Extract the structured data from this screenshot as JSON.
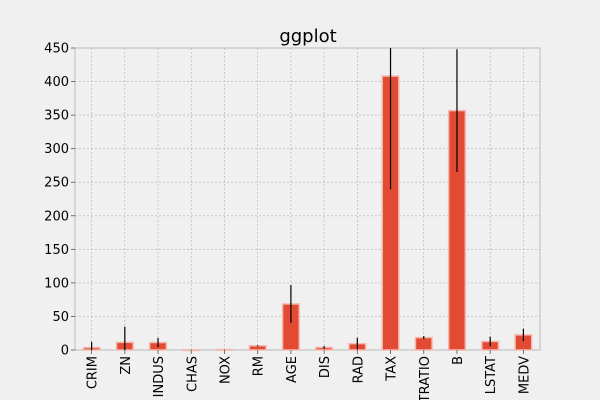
{
  "chart_data": {
    "type": "bar",
    "title": "ggplot",
    "categories": [
      "CRIM",
      "ZN",
      "INDUS",
      "CHAS",
      "NOX",
      "RM",
      "AGE",
      "DIS",
      "RAD",
      "TAX",
      "PTRATIO",
      "B",
      "LSTAT",
      "MEDV"
    ],
    "values": [
      3.6,
      11.4,
      11.1,
      0.07,
      0.55,
      6.3,
      68.6,
      3.8,
      9.5,
      408.2,
      18.5,
      356.7,
      12.7,
      22.5
    ],
    "error_bars": [
      8.6,
      23.3,
      6.9,
      0.25,
      0.12,
      0.7,
      28.1,
      2.1,
      8.7,
      168.5,
      2.2,
      91.3,
      7.1,
      9.2
    ],
    "ylim": [
      0,
      450
    ],
    "yticks": [
      0,
      50,
      100,
      150,
      200,
      250,
      300,
      350,
      400,
      450
    ],
    "xlabel": "",
    "ylabel": "",
    "grid": true,
    "colors": {
      "bar": "#e24a33",
      "bar_edge": "#f4b8ad",
      "background": "#f0f0f0",
      "grid": "#b0b0b0",
      "error_bar": "#000000"
    }
  }
}
